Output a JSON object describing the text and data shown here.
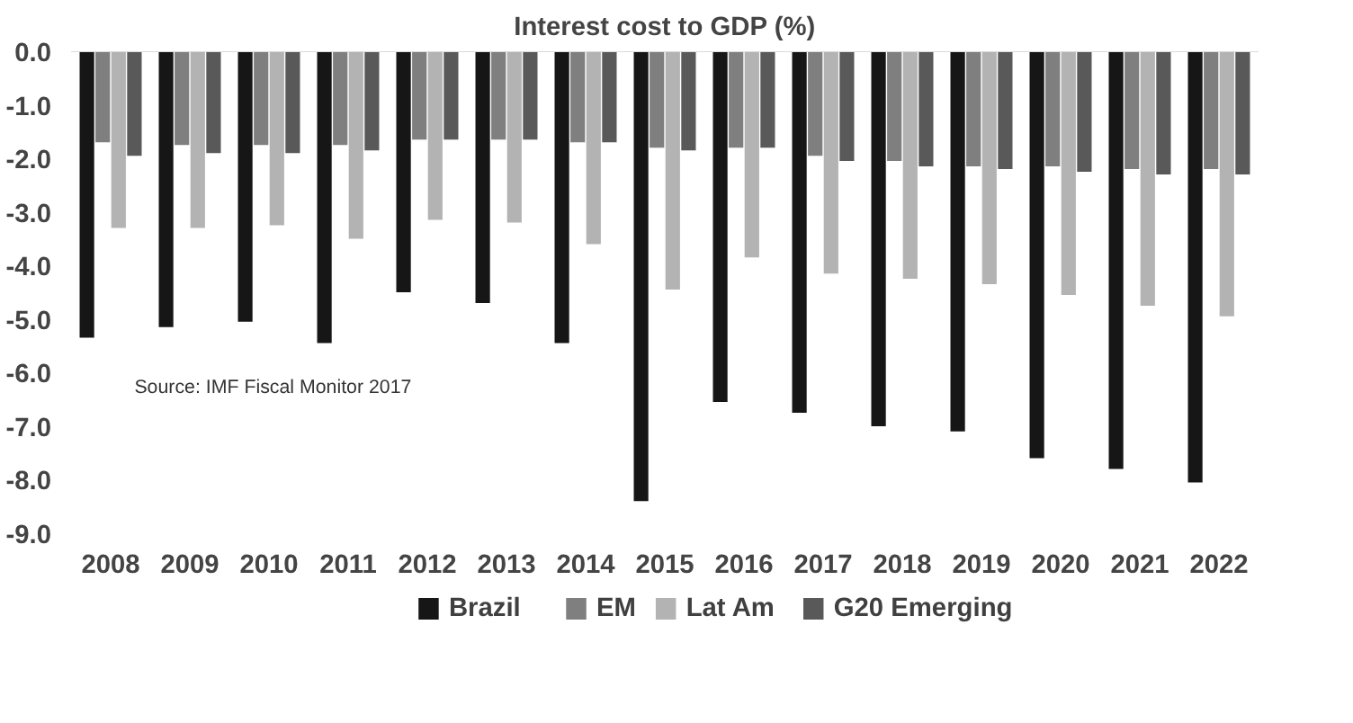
{
  "chart_data": {
    "type": "bar",
    "title": "Interest cost to GDP (%)",
    "categories": [
      "2008",
      "2009",
      "2010",
      "2011",
      "2012",
      "2013",
      "2014",
      "2015",
      "2016",
      "2017",
      "2018",
      "2019",
      "2020",
      "2021",
      "2022"
    ],
    "series": [
      {
        "name": "Brazil",
        "color": "#161616",
        "values": [
          -5.35,
          -5.15,
          -5.05,
          -5.45,
          -4.5,
          -4.7,
          -5.45,
          -8.4,
          -6.55,
          -6.75,
          -7.0,
          -7.1,
          -7.6,
          -7.8,
          -8.05
        ]
      },
      {
        "name": "EM",
        "color": "#7f7f7f",
        "values": [
          -1.7,
          -1.75,
          -1.75,
          -1.75,
          -1.65,
          -1.65,
          -1.7,
          -1.8,
          -1.8,
          -1.95,
          -2.05,
          -2.15,
          -2.15,
          -2.2,
          -2.2
        ]
      },
      {
        "name": "Lat Am",
        "color": "#b3b3b3",
        "values": [
          -3.3,
          -3.3,
          -3.25,
          -3.5,
          -3.15,
          -3.2,
          -3.6,
          -4.45,
          -3.85,
          -4.15,
          -4.25,
          -4.35,
          -4.55,
          -4.75,
          -4.95
        ]
      },
      {
        "name": "G20 Emerging",
        "color": "#595959",
        "values": [
          -1.95,
          -1.9,
          -1.9,
          -1.85,
          -1.65,
          -1.65,
          -1.7,
          -1.85,
          -1.8,
          -2.05,
          -2.15,
          -2.2,
          -2.25,
          -2.3,
          -2.3
        ]
      }
    ],
    "ylim": [
      -9,
      0
    ],
    "yticks": [
      {
        "value": 0,
        "label": "0.0"
      },
      {
        "value": -1,
        "label": "-1.0"
      },
      {
        "value": -2,
        "label": "-2.0"
      },
      {
        "value": -3,
        "label": "-3.0"
      },
      {
        "value": -4,
        "label": "-4.0"
      },
      {
        "value": -5,
        "label": "-5.0"
      },
      {
        "value": -6,
        "label": "-6.0"
      },
      {
        "value": -7,
        "label": "-7.0"
      },
      {
        "value": -8,
        "label": "-8.0"
      },
      {
        "value": -9,
        "label": "-9.0"
      }
    ],
    "grid": false,
    "legend": "bottom",
    "annotations": [
      "Source: IMF Fiscal Monitor 2017"
    ]
  }
}
